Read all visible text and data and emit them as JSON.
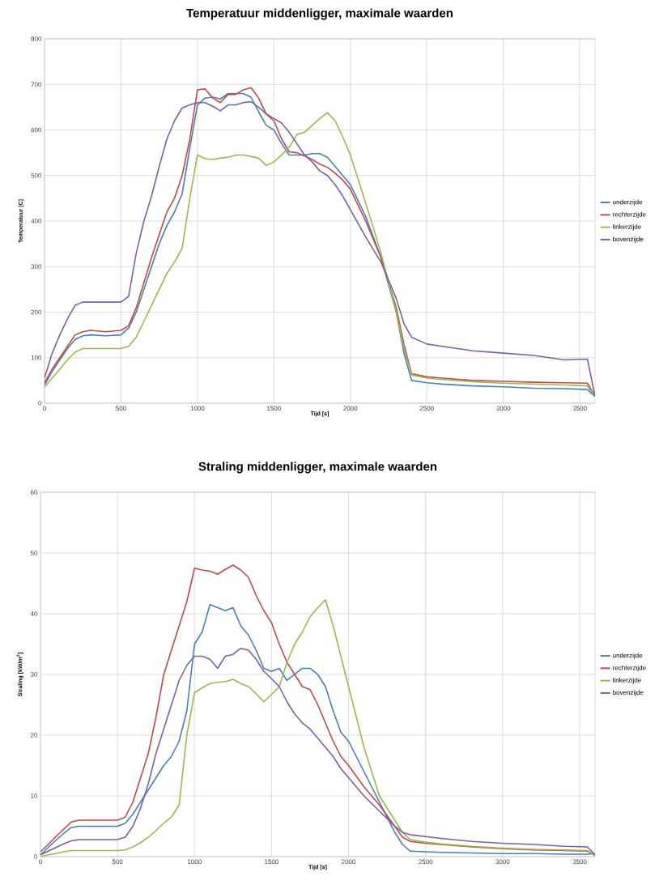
{
  "chart_data": [
    {
      "type": "line",
      "title": "Temperatuur middenligger, maximale waarden",
      "xlabel": "Tijd [s]",
      "ylabel": "Temperatuur [C]",
      "x": [
        0,
        50,
        100,
        150,
        200,
        250,
        300,
        400,
        500,
        550,
        600,
        650,
        700,
        750,
        800,
        850,
        900,
        950,
        1000,
        1050,
        1100,
        1150,
        1200,
        1250,
        1300,
        1350,
        1400,
        1450,
        1500,
        1550,
        1600,
        1650,
        1700,
        1750,
        1800,
        1850,
        1900,
        1950,
        2000,
        2100,
        2200,
        2300,
        2350,
        2400,
        2500,
        2600,
        2800,
        3000,
        3200,
        3400,
        3550,
        3600
      ],
      "xlim": [
        0,
        3600
      ],
      "xticks": [
        0,
        500,
        1000,
        1500,
        2000,
        2500,
        3000,
        3500
      ],
      "ylim": [
        0,
        800
      ],
      "yticks": [
        0,
        100,
        200,
        300,
        400,
        500,
        600,
        700,
        800
      ],
      "grid": true,
      "legend": "right",
      "marker": "none",
      "line_style": "solid",
      "series": [
        {
          "name": "onderzijde",
          "color": "#4a7ebb",
          "values": [
            40,
            70,
            95,
            120,
            140,
            148,
            150,
            148,
            150,
            165,
            200,
            250,
            300,
            350,
            390,
            420,
            460,
            560,
            655,
            670,
            672,
            668,
            680,
            680,
            680,
            672,
            640,
            610,
            600,
            570,
            545,
            545,
            545,
            548,
            548,
            540,
            520,
            500,
            480,
            410,
            320,
            200,
            110,
            50,
            45,
            42,
            38,
            36,
            33,
            32,
            30,
            15
          ]
        },
        {
          "name": "rechterzijde",
          "color": "#be4b48",
          "values": [
            45,
            75,
            100,
            125,
            150,
            157,
            160,
            157,
            160,
            170,
            210,
            265,
            320,
            370,
            420,
            450,
            500,
            580,
            688,
            690,
            670,
            660,
            678,
            678,
            688,
            693,
            670,
            635,
            620,
            580,
            552,
            550,
            543,
            535,
            525,
            518,
            505,
            490,
            470,
            400,
            320,
            210,
            130,
            65,
            58,
            55,
            50,
            48,
            46,
            45,
            44,
            15
          ]
        },
        {
          "name": "linkerzijde",
          "color": "#98b954",
          "values": [
            35,
            55,
            75,
            95,
            112,
            120,
            120,
            120,
            120,
            125,
            145,
            180,
            215,
            250,
            285,
            310,
            340,
            450,
            545,
            537,
            535,
            538,
            540,
            545,
            545,
            542,
            538,
            522,
            530,
            545,
            562,
            590,
            595,
            610,
            625,
            638,
            620,
            585,
            545,
            440,
            330,
            200,
            120,
            62,
            55,
            52,
            47,
            44,
            42,
            40,
            38,
            15
          ]
        },
        {
          "name": "bovenzijde",
          "color": "#7d60a0",
          "values": [
            55,
            110,
            150,
            185,
            215,
            222,
            222,
            222,
            222,
            235,
            330,
            400,
            455,
            520,
            580,
            620,
            648,
            655,
            660,
            660,
            652,
            642,
            655,
            655,
            660,
            662,
            650,
            635,
            625,
            615,
            595,
            570,
            545,
            530,
            510,
            500,
            480,
            455,
            425,
            365,
            310,
            230,
            175,
            145,
            130,
            125,
            115,
            110,
            105,
            95,
            97,
            15
          ]
        }
      ]
    },
    {
      "type": "line",
      "title": "Straling middenligger, maximale waarden",
      "xlabel": "Tijd [s]",
      "ylabel": "Straling [kW/m$^{2}$]",
      "x": [
        0,
        50,
        100,
        150,
        200,
        250,
        300,
        400,
        500,
        550,
        600,
        650,
        700,
        750,
        800,
        850,
        900,
        950,
        1000,
        1050,
        1100,
        1150,
        1200,
        1250,
        1300,
        1350,
        1400,
        1450,
        1500,
        1550,
        1600,
        1650,
        1700,
        1750,
        1800,
        1850,
        1900,
        1950,
        2000,
        2100,
        2200,
        2300,
        2350,
        2400,
        2500,
        2600,
        2800,
        3000,
        3200,
        3400,
        3550,
        3600
      ],
      "xlim": [
        0,
        3600
      ],
      "xticks": [
        0,
        500,
        1000,
        1500,
        2000,
        2500,
        3000,
        3500
      ],
      "ylim": [
        0,
        60
      ],
      "yticks": [
        0,
        10,
        20,
        30,
        40,
        50,
        60
      ],
      "grid": true,
      "legend": "right",
      "marker": "none",
      "line_style": "solid",
      "series": [
        {
          "name": "onderzijde",
          "color": "#4a7ebb",
          "values": [
            0.3,
            1.5,
            2.7,
            3.8,
            4.8,
            5,
            5,
            5,
            5,
            5.5,
            7,
            9,
            11,
            13,
            15,
            16.5,
            19,
            24,
            35,
            37,
            41.5,
            41,
            40.5,
            41,
            38,
            36.5,
            34,
            31,
            30.5,
            31,
            29,
            30,
            31,
            31,
            30,
            28,
            24,
            20.5,
            19,
            14,
            9,
            4,
            2,
            0.9,
            0.8,
            0.7,
            0.6,
            0.5,
            0.5,
            0.4,
            0.4,
            0.5
          ]
        },
        {
          "name": "rechterzijde",
          "color": "#be4b48",
          "values": [
            0.8,
            2,
            3.3,
            4.5,
            5.7,
            6,
            6,
            6,
            6,
            6.5,
            9,
            13,
            17,
            23,
            30,
            34,
            38,
            42,
            47.5,
            47.2,
            47,
            46.5,
            47.3,
            48,
            47.2,
            46,
            43,
            40.5,
            38.5,
            35,
            32,
            30,
            28,
            27.5,
            25,
            22,
            19,
            16.5,
            15,
            11.5,
            8.5,
            5,
            3.2,
            2.5,
            2.2,
            2,
            1.6,
            1.3,
            1.1,
            1,
            0.9,
            0.2
          ]
        },
        {
          "name": "linkerzijde",
          "color": "#98b954",
          "values": [
            0,
            0.3,
            0.5,
            0.8,
            1,
            1,
            1,
            1,
            1,
            1.1,
            1.6,
            2.3,
            3.2,
            4.3,
            5.5,
            6.5,
            8.5,
            20,
            27,
            27.8,
            28.5,
            28.7,
            28.8,
            29.2,
            28.5,
            28,
            26.8,
            25.5,
            26.7,
            28,
            32,
            35,
            37,
            39.5,
            41,
            42.3,
            38,
            33,
            28,
            18,
            10,
            6,
            4,
            2.8,
            2.4,
            2.1,
            1.7,
            1.4,
            1.2,
            1.1,
            1,
            0.2
          ]
        },
        {
          "name": "bovenzijde",
          "color": "#7d60a0",
          "values": [
            0.3,
            0.9,
            1.5,
            2.1,
            2.6,
            2.8,
            2.8,
            2.8,
            2.8,
            3.2,
            5,
            8,
            12,
            17,
            21,
            25,
            29,
            31.5,
            33,
            33,
            32.5,
            31,
            33,
            33.3,
            34.3,
            34,
            32.5,
            30.5,
            29.3,
            28,
            25.5,
            23.5,
            22,
            21,
            19.5,
            18,
            16.5,
            14.5,
            13,
            10,
            7.5,
            5,
            4,
            3.6,
            3.3,
            3,
            2.5,
            2.2,
            2,
            1.7,
            1.6,
            0.3
          ]
        }
      ]
    }
  ]
}
